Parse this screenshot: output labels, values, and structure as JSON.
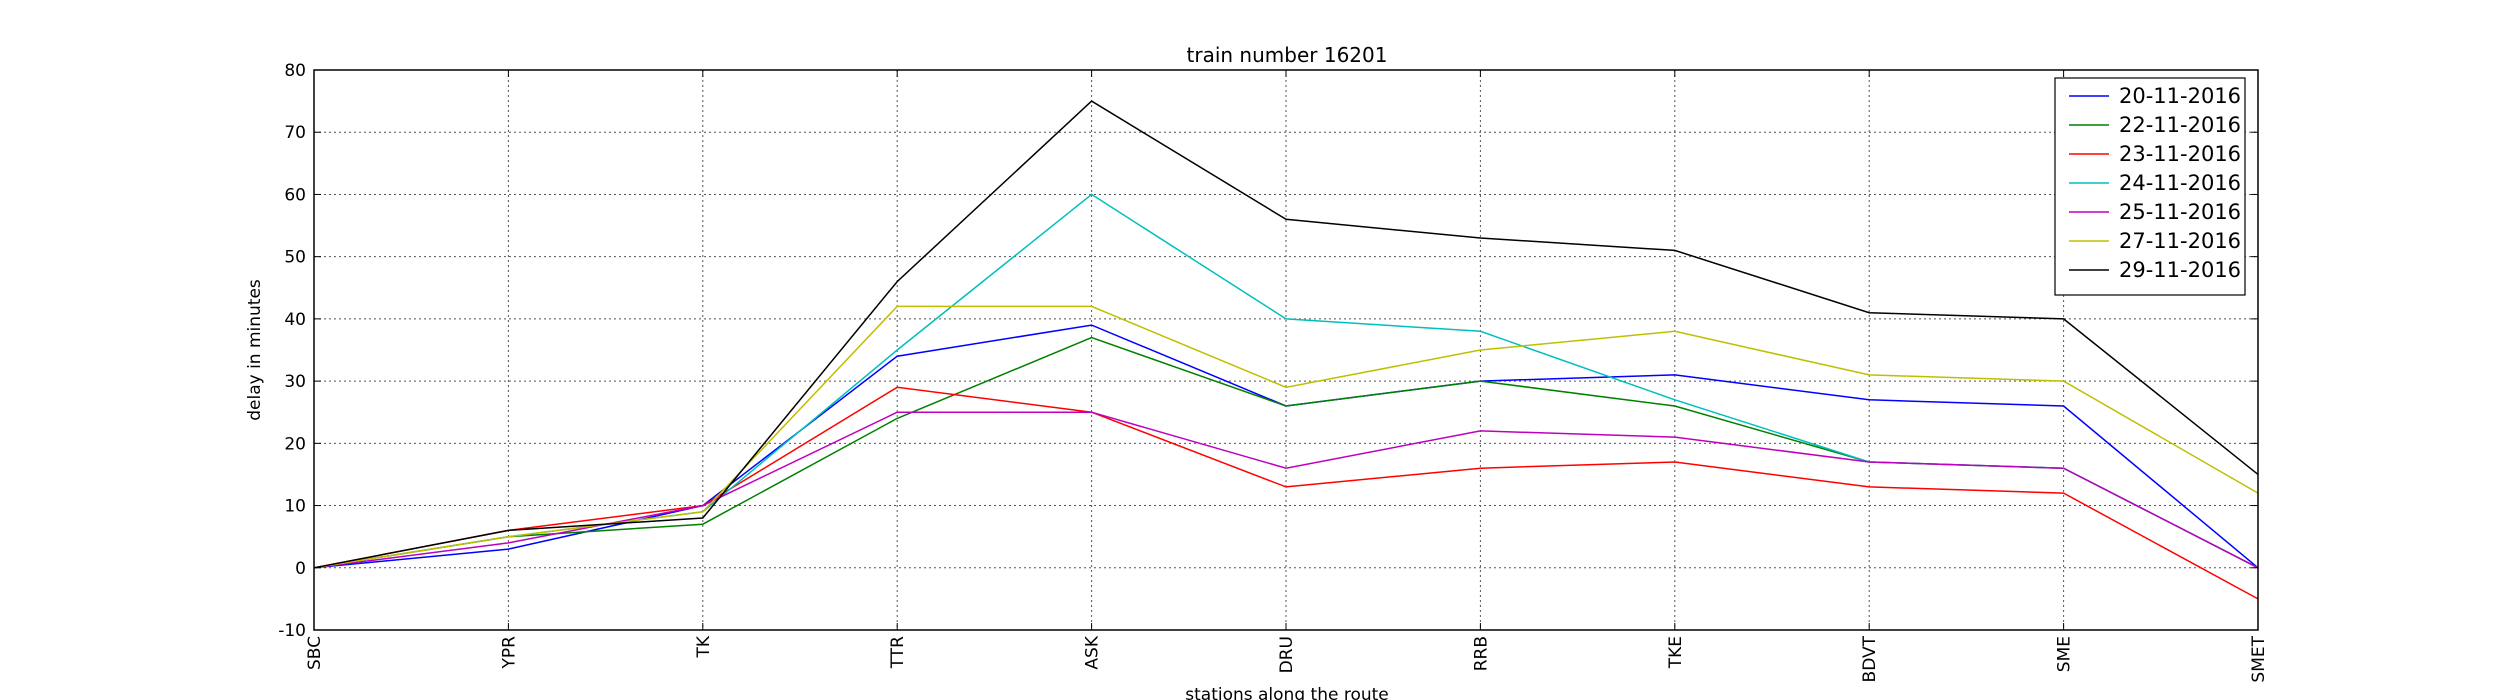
{
  "chart_data": {
    "type": "line",
    "title": "train number 16201",
    "xlabel": "stations along the route",
    "ylabel": "delay in minutes",
    "categories": [
      "SBC",
      "YPR",
      "TK",
      "TTR",
      "ASK",
      "DRU",
      "RRB",
      "TKE",
      "BDVT",
      "SME",
      "SMET"
    ],
    "ylim": [
      -10,
      80
    ],
    "yticks": [
      -10,
      0,
      10,
      20,
      30,
      40,
      50,
      60,
      70,
      80
    ],
    "grid": true,
    "legend_position": "top-right",
    "series": [
      {
        "name": "20-11-2016",
        "color": "#0000ff",
        "values": [
          0,
          3,
          10,
          34,
          39,
          26,
          30,
          31,
          27,
          26,
          0
        ]
      },
      {
        "name": "22-11-2016",
        "color": "#008000",
        "values": [
          0,
          5,
          7,
          24,
          37,
          26,
          30,
          26,
          17,
          16,
          0
        ]
      },
      {
        "name": "23-11-2016",
        "color": "#ff0000",
        "values": [
          0,
          6,
          10,
          29,
          25,
          13,
          16,
          17,
          13,
          12,
          -5
        ]
      },
      {
        "name": "24-11-2016",
        "color": "#00bfbf",
        "values": [
          0,
          5,
          9,
          35,
          60,
          40,
          38,
          27,
          17,
          16,
          0
        ]
      },
      {
        "name": "25-11-2016",
        "color": "#bf00bf",
        "values": [
          0,
          4,
          10,
          25,
          25,
          16,
          22,
          21,
          17,
          16,
          0
        ]
      },
      {
        "name": "27-11-2016",
        "color": "#bfbf00",
        "values": [
          0,
          5,
          9,
          42,
          42,
          29,
          35,
          38,
          31,
          30,
          12
        ]
      },
      {
        "name": "29-11-2016",
        "color": "#000000",
        "values": [
          0,
          6,
          8,
          46,
          75,
          56,
          53,
          51,
          41,
          40,
          15
        ]
      }
    ]
  }
}
